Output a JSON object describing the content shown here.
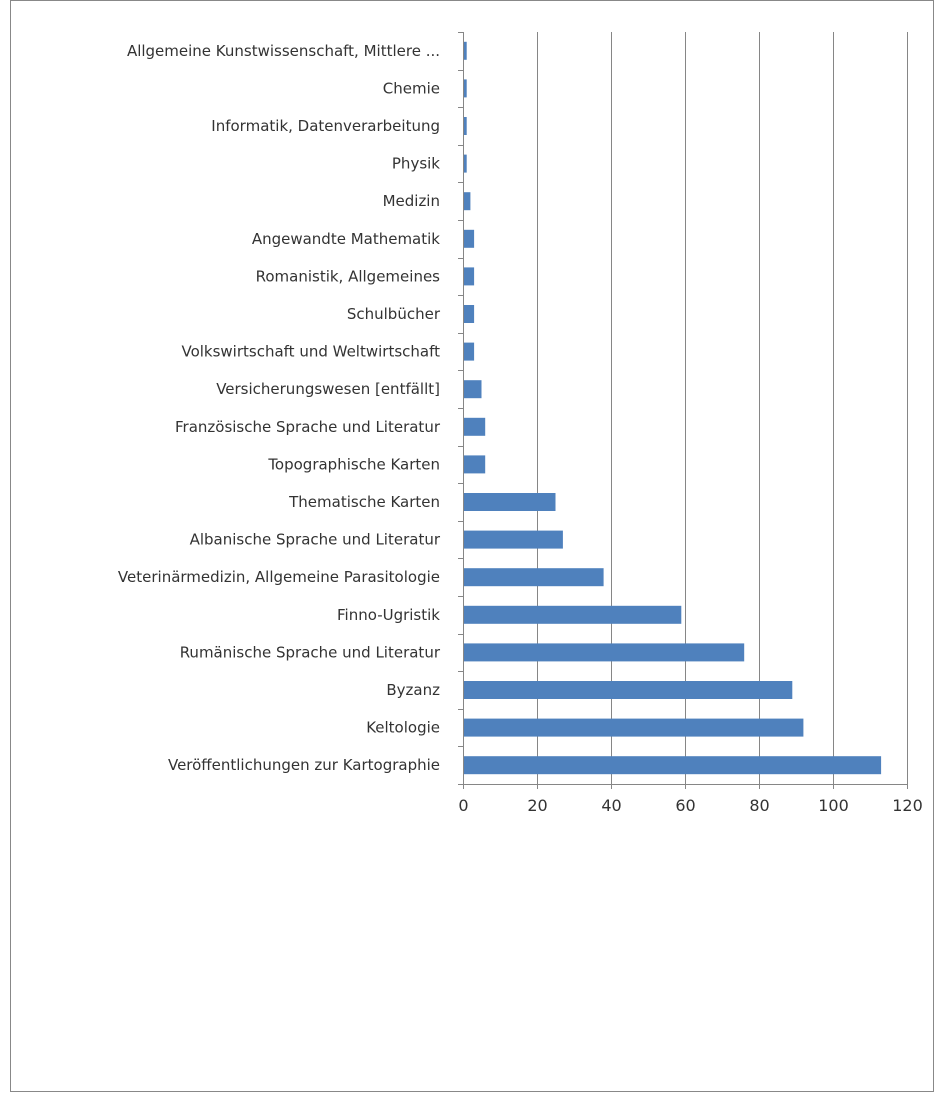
{
  "chart_data": {
    "type": "bar",
    "orientation": "horizontal",
    "categories": [
      "Allgemeine Kunstwissenschaft, Mittlere ...",
      "Chemie",
      "Informatik, Datenverarbeitung",
      "Physik",
      "Medizin",
      "Angewandte Mathematik",
      "Romanistik, Allgemeines",
      "Schulbücher",
      "Volkswirtschaft und Weltwirtschaft",
      "Versicherungswesen [entfällt]",
      "Französische Sprache und Literatur",
      "Topographische Karten",
      "Thematische Karten",
      "Albanische Sprache und Literatur",
      "Veterinärmedizin, Allgemeine Parasitologie",
      "Finno-Ugristik",
      "Rumänische Sprache und Literatur",
      "Byzanz",
      "Keltologie",
      "Veröffentlichungen zur Kartographie"
    ],
    "values": [
      1,
      1,
      1,
      1,
      2,
      3,
      3,
      3,
      3,
      5,
      6,
      6,
      25,
      27,
      38,
      59,
      76,
      89,
      92,
      113
    ],
    "xlim": [
      0,
      120
    ],
    "xticks": [
      "0",
      "20",
      "40",
      "60",
      "80",
      "100",
      "120"
    ],
    "grid": "vertical major gridlines",
    "legend": "none",
    "colors": {
      "bar": "#4f81bd",
      "grid": "#868686",
      "axis": "#868686",
      "border": "#888888"
    }
  }
}
